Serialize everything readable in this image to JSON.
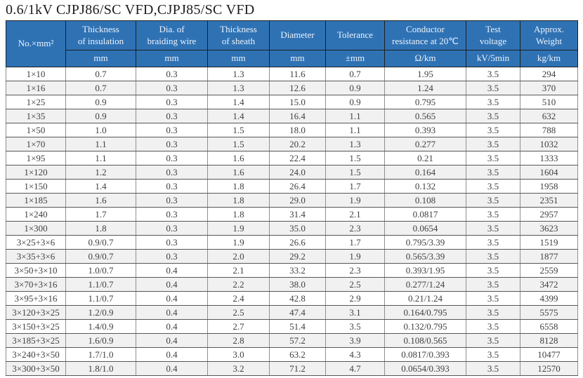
{
  "title": "0.6/1kV CJPJ86/SC VFD,CJPJ85/SC VFD",
  "table": {
    "columns": [
      {
        "key": "size",
        "name": "No.×mm²",
        "unit": ""
      },
      {
        "key": "insulation-thickness",
        "name": "Thickness\nof insulation",
        "unit": "mm"
      },
      {
        "key": "braiding-wire-dia",
        "name": "Dia. of\nbraiding wire",
        "unit": "mm"
      },
      {
        "key": "sheath-thickness",
        "name": "Thickness\nof sheath",
        "unit": "mm"
      },
      {
        "key": "diameter",
        "name": "Diameter",
        "unit": "mm"
      },
      {
        "key": "tolerance",
        "name": "Tolerance",
        "unit": "±mm"
      },
      {
        "key": "conductor-resistance",
        "name": "Conductor\nresistance at 20℃",
        "unit": "Ω/km"
      },
      {
        "key": "test-voltage",
        "name": "Test\nvoltage",
        "unit": "kV/5min"
      },
      {
        "key": "approx-weight",
        "name": "Approx.\nWeight",
        "unit": "kg/km"
      }
    ],
    "rows": [
      [
        "1×10",
        "0.7",
        "0.3",
        "1.3",
        "11.6",
        "0.7",
        "1.95",
        "3.5",
        "294"
      ],
      [
        "1×16",
        "0.7",
        "0.3",
        "1.3",
        "12.6",
        "0.9",
        "1.24",
        "3.5",
        "370"
      ],
      [
        "1×25",
        "0.9",
        "0.3",
        "1.4",
        "15.0",
        "0.9",
        "0.795",
        "3.5",
        "510"
      ],
      [
        "1×35",
        "0.9",
        "0.3",
        "1.4",
        "16.4",
        "1.1",
        "0.565",
        "3.5",
        "632"
      ],
      [
        "1×50",
        "1.0",
        "0.3",
        "1.5",
        "18.0",
        "1.1",
        "0.393",
        "3.5",
        "788"
      ],
      [
        "1×70",
        "1.1",
        "0.3",
        "1.5",
        "20.2",
        "1.3",
        "0.277",
        "3.5",
        "1032"
      ],
      [
        "1×95",
        "1.1",
        "0.3",
        "1.6",
        "22.4",
        "1.5",
        "0.21",
        "3.5",
        "1333"
      ],
      [
        "1×120",
        "1.2",
        "0.3",
        "1.6",
        "24.0",
        "1.5",
        "0.164",
        "3.5",
        "1604"
      ],
      [
        "1×150",
        "1.4",
        "0.3",
        "1.8",
        "26.4",
        "1.7",
        "0.132",
        "3.5",
        "1958"
      ],
      [
        "1×185",
        "1.6",
        "0.3",
        "1.8",
        "29.0",
        "1.9",
        "0.108",
        "3.5",
        "2351"
      ],
      [
        "1×240",
        "1.7",
        "0.3",
        "1.8",
        "31.4",
        "2.1",
        "0.0817",
        "3.5",
        "2957"
      ],
      [
        "1×300",
        "1.8",
        "0.3",
        "1.9",
        "35.0",
        "2.3",
        "0.0654",
        "3.5",
        "3623"
      ],
      [
        "3×25+3×6",
        "0.9/0.7",
        "0.3",
        "1.9",
        "26.6",
        "1.7",
        "0.795/3.39",
        "3.5",
        "1519"
      ],
      [
        "3×35+3×6",
        "0.9/0.7",
        "0.3",
        "2.0",
        "29.2",
        "1.9",
        "0.565/3.39",
        "3.5",
        "1877"
      ],
      [
        "3×50+3×10",
        "1.0/0.7",
        "0.4",
        "2.1",
        "33.2",
        "2.3",
        "0.393/1.95",
        "3.5",
        "2559"
      ],
      [
        "3×70+3×16",
        "1.1/0.7",
        "0.4",
        "2.2",
        "38.0",
        "2.5",
        "0.277/1.24",
        "3.5",
        "3472"
      ],
      [
        "3×95+3×16",
        "1.1/0.7",
        "0.4",
        "2.4",
        "42.8",
        "2.9",
        "0.21/1.24",
        "3.5",
        "4399"
      ],
      [
        "3×120+3×25",
        "1.2/0.9",
        "0.4",
        "2.5",
        "47.4",
        "3.1",
        "0.164/0.795",
        "3.5",
        "5575"
      ],
      [
        "3×150+3×25",
        "1.4/0.9",
        "0.4",
        "2.7",
        "51.4",
        "3.5",
        "0.132/0.795",
        "3.5",
        "6558"
      ],
      [
        "3×185+3×25",
        "1.6/0.9",
        "0.4",
        "2.8",
        "57.2",
        "3.9",
        "0.108/0.565",
        "3.5",
        "8128"
      ],
      [
        "3×240+3×50",
        "1.7/1.0",
        "0.4",
        "3.0",
        "63.2",
        "4.3",
        "0.0817/0.393",
        "3.5",
        "10477"
      ],
      [
        "3×300+3×50",
        "1.8/1.0",
        "0.4",
        "3.2",
        "71.2",
        "4.7",
        "0.0654/0.393",
        "3.5",
        "12570"
      ]
    ],
    "colors": {
      "header_bg": "#2f72b4",
      "header_text": "#edf3fa",
      "stripe_bg": "#f1f1f1",
      "body_text": "#3f3f3f"
    }
  }
}
